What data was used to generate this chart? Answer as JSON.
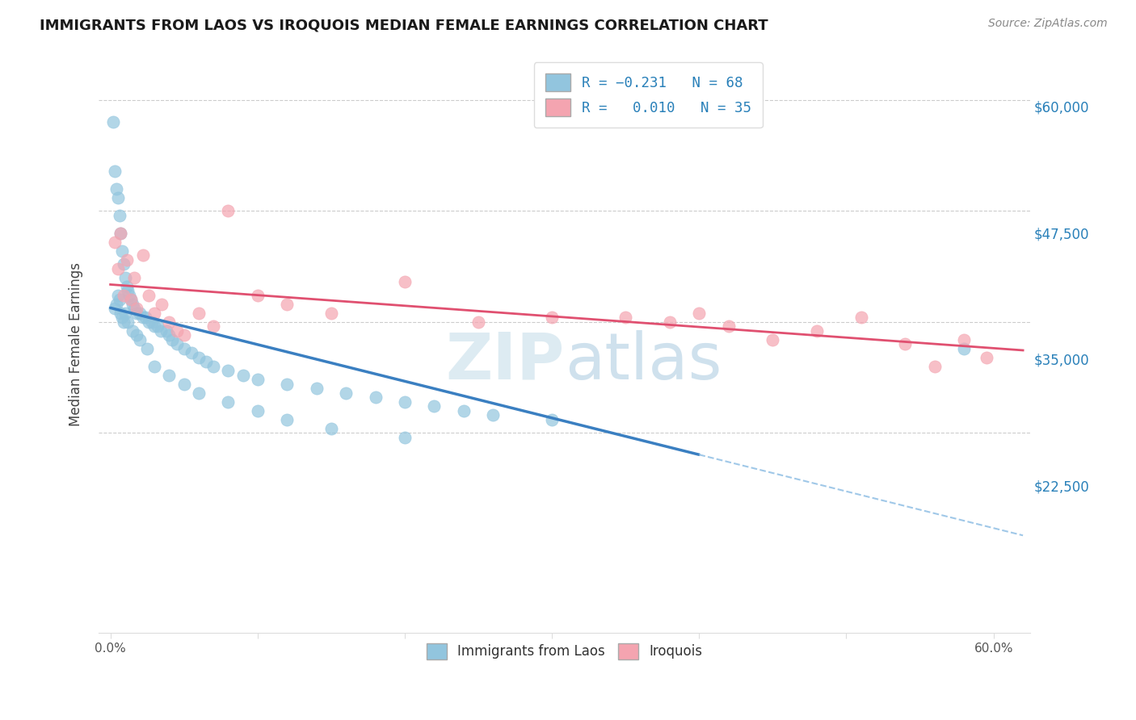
{
  "title": "IMMIGRANTS FROM LAOS VS IROQUOIS MEDIAN FEMALE EARNINGS CORRELATION CHART",
  "source": "Source: ZipAtlas.com",
  "ylabel": "Median Female Earnings",
  "color_blue": "#92c5de",
  "color_pink": "#f4a4b0",
  "color_blue_line": "#3a7fc1",
  "color_pink_line": "#e05070",
  "color_blue_dash": "#a0c8e8",
  "watermark": "ZIPatlas",
  "blue_x": [
    0.002,
    0.003,
    0.004,
    0.005,
    0.006,
    0.007,
    0.008,
    0.009,
    0.01,
    0.011,
    0.012,
    0.013,
    0.014,
    0.015,
    0.016,
    0.018,
    0.02,
    0.022,
    0.024,
    0.026,
    0.028,
    0.03,
    0.032,
    0.034,
    0.038,
    0.04,
    0.042,
    0.045,
    0.05,
    0.055,
    0.06,
    0.065,
    0.07,
    0.08,
    0.09,
    0.1,
    0.12,
    0.14,
    0.16,
    0.18,
    0.2,
    0.22,
    0.24,
    0.26,
    0.3,
    0.003,
    0.004,
    0.005,
    0.006,
    0.007,
    0.008,
    0.009,
    0.01,
    0.012,
    0.015,
    0.018,
    0.02,
    0.025,
    0.03,
    0.04,
    0.05,
    0.06,
    0.08,
    0.1,
    0.12,
    0.15,
    0.2,
    0.58
  ],
  "blue_y": [
    57500,
    52000,
    50000,
    49000,
    47000,
    45000,
    43000,
    41500,
    40000,
    39000,
    38500,
    38000,
    37500,
    37000,
    36500,
    36000,
    36000,
    35500,
    35500,
    35000,
    35000,
    34500,
    34500,
    34000,
    34000,
    33500,
    33000,
    32500,
    32000,
    31500,
    31000,
    30500,
    30000,
    29500,
    29000,
    28500,
    28000,
    27500,
    27000,
    26500,
    26000,
    25500,
    25000,
    24500,
    24000,
    36500,
    37000,
    38000,
    37500,
    36000,
    35500,
    35000,
    36000,
    35000,
    34000,
    33500,
    33000,
    32000,
    30000,
    29000,
    28000,
    27000,
    26000,
    25000,
    24000,
    23000,
    22000,
    32000
  ],
  "pink_x": [
    0.003,
    0.005,
    0.007,
    0.009,
    0.011,
    0.014,
    0.016,
    0.018,
    0.022,
    0.026,
    0.03,
    0.035,
    0.04,
    0.045,
    0.05,
    0.06,
    0.07,
    0.08,
    0.1,
    0.12,
    0.15,
    0.2,
    0.25,
    0.3,
    0.35,
    0.38,
    0.4,
    0.42,
    0.45,
    0.48,
    0.51,
    0.54,
    0.56,
    0.58,
    0.595
  ],
  "pink_y": [
    44000,
    41000,
    45000,
    38000,
    42000,
    37500,
    40000,
    36500,
    42500,
    38000,
    36000,
    37000,
    35000,
    34000,
    33500,
    36000,
    34500,
    47500,
    38000,
    37000,
    36000,
    39500,
    35000,
    35500,
    35500,
    35000,
    36000,
    34500,
    33000,
    34000,
    35500,
    32500,
    30000,
    33000,
    31000
  ]
}
